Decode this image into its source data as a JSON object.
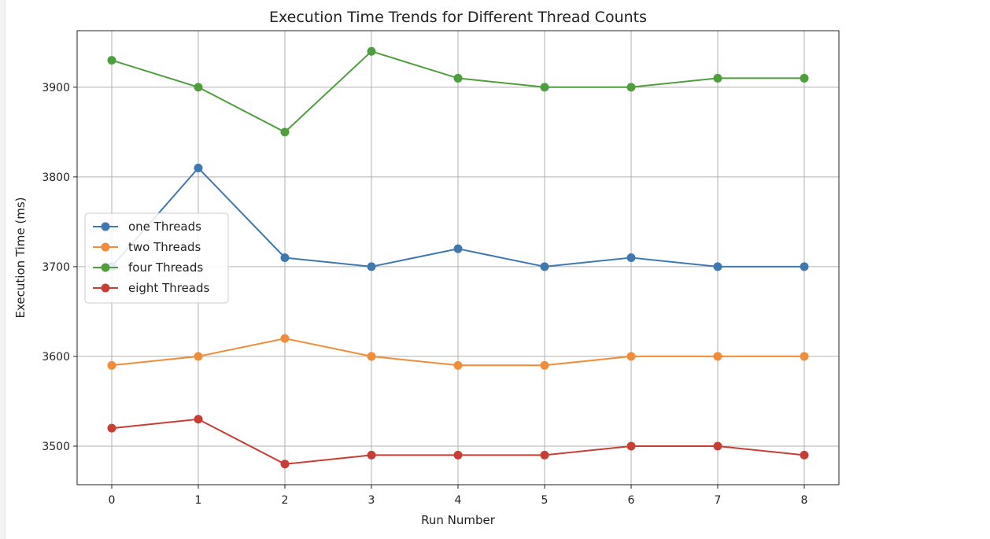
{
  "chart_data": {
    "type": "line",
    "title": "Execution Time Trends for Different Thread Counts",
    "xlabel": "Run Number",
    "ylabel": "Execution Time (ms)",
    "x": [
      0,
      1,
      2,
      3,
      4,
      5,
      6,
      7,
      8
    ],
    "xlim": [
      -0.4,
      8.4
    ],
    "ylim": [
      3457,
      3963
    ],
    "xticks": [
      "0",
      "1",
      "2",
      "3",
      "4",
      "5",
      "6",
      "7",
      "8"
    ],
    "yticks": [
      3500,
      3600,
      3700,
      3800,
      3900
    ],
    "grid": true,
    "legend_position": "center-left",
    "markers": "circle",
    "series": [
      {
        "name": "one Threads",
        "color": "#3f78b0",
        "values": [
          3700,
          3810,
          3710,
          3700,
          3720,
          3700,
          3710,
          3700,
          3700
        ]
      },
      {
        "name": "two Threads",
        "color": "#f08c3a",
        "values": [
          3590,
          3600,
          3620,
          3600,
          3590,
          3590,
          3600,
          3600,
          3600
        ]
      },
      {
        "name": "four Threads",
        "color": "#4f9e3d",
        "values": [
          3930,
          3900,
          3850,
          3940,
          3910,
          3900,
          3900,
          3910,
          3910
        ]
      },
      {
        "name": "eight Threads",
        "color": "#c83e35",
        "values": [
          3520,
          3530,
          3480,
          3490,
          3490,
          3490,
          3500,
          3500,
          3490
        ]
      }
    ]
  }
}
